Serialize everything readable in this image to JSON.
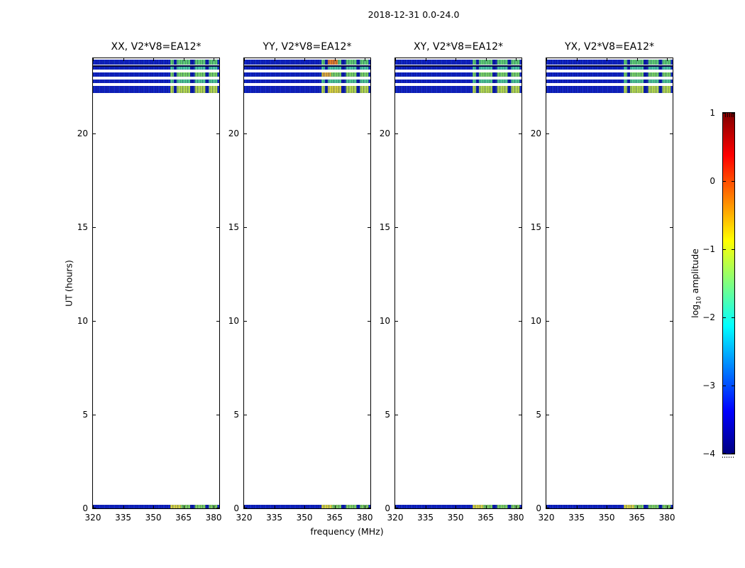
{
  "chart_data": {
    "type": "heatmap",
    "suptitle": "2018-12-31 0.0-24.0",
    "xlabel": "frequency (MHz)",
    "ylabel": "UT (hours)",
    "axes": {
      "xlim": [
        320,
        382.8
      ],
      "ylim": [
        0,
        24
      ],
      "grid": false,
      "xticks": [
        {
          "v": 320,
          "label": "320"
        },
        {
          "v": 335,
          "label": "335"
        },
        {
          "v": 350,
          "label": "350"
        },
        {
          "v": 365,
          "label": "365"
        },
        {
          "v": 380,
          "label": "380"
        }
      ],
      "yticks": [
        {
          "v": 0,
          "label": "0"
        },
        {
          "v": 5,
          "label": "5"
        },
        {
          "v": 10,
          "label": "10"
        },
        {
          "v": 15,
          "label": "15"
        },
        {
          "v": 20,
          "label": "20"
        }
      ]
    },
    "panels": [
      {
        "title": "XX, V2*V8=EA12*"
      },
      {
        "title": "YY, V2*V8=EA12*"
      },
      {
        "title": "XY, V2*V8=EA12*"
      },
      {
        "title": "YX, V2*V8=EA12*"
      }
    ],
    "colorbar": {
      "label_prefix": "log",
      "label_sub": "10",
      "label_suffix": " amplitude",
      "min": -4,
      "max": 1,
      "ticks": [
        {
          "v": 1,
          "label": "1"
        },
        {
          "v": 0,
          "label": "0"
        },
        {
          "v": -1,
          "label": "−1"
        },
        {
          "v": -2,
          "label": "−2"
        },
        {
          "v": -3,
          "label": "−3"
        },
        {
          "v": -4,
          "label": "−4"
        }
      ],
      "colormap": "jet",
      "colormap_stops": [
        [
          "#000080",
          0
        ],
        [
          "#0000ff",
          12.5
        ],
        [
          "#00ffff",
          37.5
        ],
        [
          "#ffff00",
          62.5
        ],
        [
          "#ff0000",
          87.5
        ],
        [
          "#800000",
          100
        ]
      ]
    },
    "palette": {
      "noise_blue": "#1123c6",
      "flag_blue": "#0c1cae",
      "dark_row": "#01063a"
    },
    "time_bands": [
      {
        "ut": [
          23.64,
          23.91
        ],
        "kind": "data",
        "bright_color": "#67d973",
        "log10_amp_bright": -1.4
      },
      {
        "ut": [
          23.55,
          23.64
        ],
        "kind": "dark",
        "log10_amp": -4.0
      },
      {
        "ut": [
          23.4,
          23.55
        ],
        "kind": "data",
        "bright_color": "#4cd0a6",
        "log10_amp_bright": -1.7
      },
      {
        "ut": [
          23.0,
          23.26
        ],
        "kind": "data",
        "bright_color": "#7fdc63",
        "log10_amp_bright": -1.3
      },
      {
        "ut": [
          22.66,
          22.85
        ],
        "kind": "data",
        "bright_color": "#55d292",
        "log10_amp_bright": -1.6
      },
      {
        "ut": [
          22.13,
          22.51
        ],
        "kind": "data",
        "bright_color": "#bfe44c",
        "log10_amp_bright": -1.1
      },
      {
        "ut": [
          0.0,
          0.19
        ],
        "kind": "data",
        "bright_color": "#86dc5e",
        "log10_amp_bright": -1.3
      }
    ],
    "freq_segments": [
      {
        "f": [
          320.0,
          358.5
        ],
        "type": "noise",
        "log10_amp": -3.2
      },
      {
        "f": [
          358.5,
          360.2
        ],
        "type": "bright",
        "log10_amp": -1.4
      },
      {
        "f": [
          360.2,
          361.6
        ],
        "type": "flag",
        "log10_amp": -3.4
      },
      {
        "f": [
          361.6,
          368.4
        ],
        "type": "bright",
        "log10_amp": -1.2
      },
      {
        "f": [
          368.4,
          370.6
        ],
        "type": "flag",
        "log10_amp": -3.4
      },
      {
        "f": [
          370.6,
          376.0
        ],
        "type": "bright",
        "log10_amp": -1.3
      },
      {
        "f": [
          376.0,
          377.6
        ],
        "type": "flag",
        "log10_amp": -3.4
      },
      {
        "f": [
          377.6,
          382.0
        ],
        "type": "bright",
        "log10_amp": -1.3
      },
      {
        "f": [
          382.0,
          382.8
        ],
        "type": "noise",
        "log10_amp": -3.2
      }
    ],
    "accents": [
      {
        "panel": 1,
        "band": 0,
        "f": [
          361.6,
          366.6
        ],
        "color": "#ef8325",
        "log10_amp": -0.5
      },
      {
        "panel": 1,
        "band": 3,
        "f": [
          358.8,
          363.2
        ],
        "color": "#e9b23a",
        "log10_amp": -0.8
      },
      {
        "panel": 1,
        "band": 5,
        "f": [
          361.6,
          368.4
        ],
        "color": "#e3dc3b",
        "log10_amp": -1.0
      },
      {
        "panel": "all",
        "band": 6,
        "f": [
          358.5,
          363.8
        ],
        "color": "#e2de41",
        "log10_amp": -1.0
      }
    ]
  }
}
